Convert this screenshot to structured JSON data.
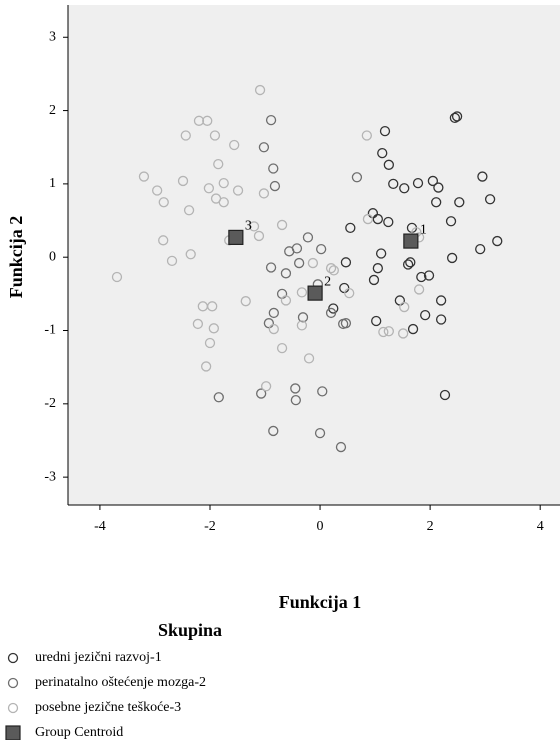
{
  "chart_data": {
    "type": "scatter",
    "x_label": "Funkcija 1",
    "y_label": "Funkcija 2",
    "xlim": [
      -4.58,
      4.36
    ],
    "ylim": [
      -3.38,
      3.44
    ],
    "xticks": [
      -4,
      -2,
      0,
      2,
      4
    ],
    "yticks": [
      -3,
      -2,
      -1,
      0,
      1,
      2,
      3
    ],
    "background": "#efefef",
    "legend_title": "Skupina",
    "series": [
      {
        "name": "uredni jezični razvoj-1",
        "color": "#333333",
        "marker": "circle",
        "x": [
          2.45,
          2.49,
          1.18,
          1.13,
          1.25,
          2.95,
          1.33,
          1.53,
          1.78,
          2.05,
          2.15,
          2.11,
          2.53,
          3.09,
          2.38,
          0.96,
          1.05,
          1.24,
          1.67,
          0.55,
          3.22,
          2.91,
          2.4,
          1.11,
          1.6,
          1.64,
          1.05,
          0.98,
          1.98,
          1.84,
          2.2,
          1.45,
          1.91,
          2.2,
          1.02,
          1.69,
          2.27,
          0.24,
          0.47,
          0.44
        ],
        "values": [
          1.9,
          1.92,
          1.72,
          1.42,
          1.26,
          1.1,
          1.0,
          0.94,
          1.01,
          1.04,
          0.95,
          0.75,
          0.75,
          0.79,
          0.49,
          0.6,
          0.52,
          0.48,
          0.4,
          0.4,
          0.22,
          0.11,
          -0.01,
          0.05,
          -0.1,
          -0.07,
          -0.15,
          -0.31,
          -0.25,
          -0.27,
          -0.59,
          -0.59,
          -0.79,
          -0.85,
          -0.87,
          -0.98,
          -1.88,
          -0.7,
          -0.07,
          -0.42
        ]
      },
      {
        "name": "perinatalno oštećenje mozga-2",
        "color": "#6e6e6e",
        "marker": "circle",
        "x": [
          -0.89,
          -1.02,
          -0.85,
          -0.82,
          0.67,
          -0.22,
          -0.42,
          -0.56,
          0.02,
          -0.38,
          -0.62,
          -0.04,
          -0.89,
          -0.69,
          -0.84,
          -0.93,
          0.2,
          -0.31,
          0.42,
          0.47,
          -0.45,
          -0.44,
          -1.07,
          0.04,
          0,
          -0.85,
          0.38,
          -1.84
        ],
        "values": [
          1.87,
          1.5,
          1.21,
          0.97,
          1.09,
          0.27,
          0.12,
          0.08,
          0.11,
          -0.08,
          -0.22,
          -0.37,
          -0.14,
          -0.5,
          -0.76,
          -0.9,
          -0.76,
          -0.82,
          -0.91,
          -0.9,
          -1.79,
          -1.95,
          -1.86,
          -1.83,
          -2.4,
          -2.37,
          -2.59,
          -1.91
        ]
      },
      {
        "name": "posebne jezične teškoće-3",
        "color": "#b4b4b4",
        "marker": "circle",
        "x": [
          -1.09,
          -1.91,
          -2.44,
          -2.2,
          -2.05,
          -1.56,
          -3.2,
          -1.85,
          -2.96,
          -2.49,
          -2.84,
          -2.02,
          -1.75,
          -1.49,
          -1.89,
          -1.02,
          -2.38,
          -1.75,
          -2.85,
          -2.35,
          -2.69,
          -3.69,
          -1.2,
          -1.11,
          -1.65,
          -0.69,
          -2.13,
          -1.96,
          -1.35,
          -2.22,
          -1.93,
          -2.0,
          -2.07,
          -0.84,
          -0.62,
          -0.33,
          0.2,
          0.25,
          0.53,
          -0.33,
          -0.69,
          -0.2,
          -0.98,
          0.85,
          0.87,
          1.8,
          1.75,
          1.8,
          1.53,
          1.15,
          1.25,
          1.51,
          -0.13
        ],
        "values": [
          2.28,
          1.66,
          1.66,
          1.86,
          1.86,
          1.53,
          1.1,
          1.27,
          0.91,
          1.04,
          0.75,
          0.94,
          1.01,
          0.91,
          0.8,
          0.87,
          0.64,
          0.75,
          0.23,
          0.04,
          -0.05,
          -0.27,
          0.42,
          0.29,
          0.23,
          0.44,
          -0.67,
          -0.67,
          -0.6,
          -0.91,
          -0.97,
          -1.17,
          -1.49,
          -0.98,
          -0.59,
          -0.48,
          -0.15,
          -0.18,
          -0.49,
          -0.93,
          -1.24,
          -1.38,
          -1.76,
          1.66,
          0.52,
          0.27,
          0.34,
          -0.44,
          -0.68,
          -1.02,
          -1.01,
          -1.04,
          -0.08
        ]
      },
      {
        "name": "Group Centroid",
        "color": "#5a5a5a",
        "marker": "square",
        "x": [
          1.65,
          -0.09,
          -1.53
        ],
        "values": [
          0.22,
          -0.49,
          0.27
        ],
        "labels": [
          "1",
          "2",
          "3"
        ]
      }
    ]
  }
}
